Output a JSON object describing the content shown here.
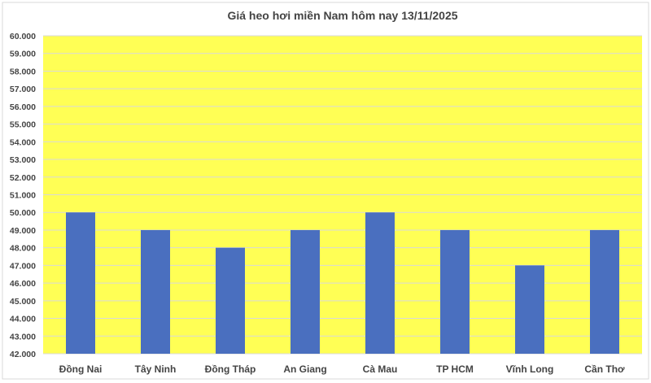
{
  "chart_data": {
    "type": "bar",
    "title": "Giá heo hơi miền Nam hôm nay 13/11/2025",
    "categories": [
      "Đồng Nai",
      "Tây Ninh",
      "Đồng Tháp",
      "An Giang",
      "Cà Mau",
      "TP HCM",
      "Vĩnh Long",
      "Cần Thơ"
    ],
    "values": [
      50000,
      49000,
      48000,
      49000,
      50000,
      49000,
      47000,
      49000
    ],
    "ylim": [
      42000,
      60000
    ],
    "ytick_step": 1000,
    "ytick_labels": [
      "42.000",
      "43.000",
      "44.000",
      "45.000",
      "46.000",
      "47.000",
      "48.000",
      "49.000",
      "50.000",
      "51.000",
      "52.000",
      "53.000",
      "54.000",
      "55.000",
      "56.000",
      "57.000",
      "58.000",
      "59.000",
      "60.000"
    ],
    "xlabel": "",
    "ylabel": "",
    "grid": true,
    "legend": "none",
    "colors": {
      "bar": "#4a6fbf",
      "plot_background": "#ffff55",
      "gridline": "#d9d9d9"
    }
  }
}
